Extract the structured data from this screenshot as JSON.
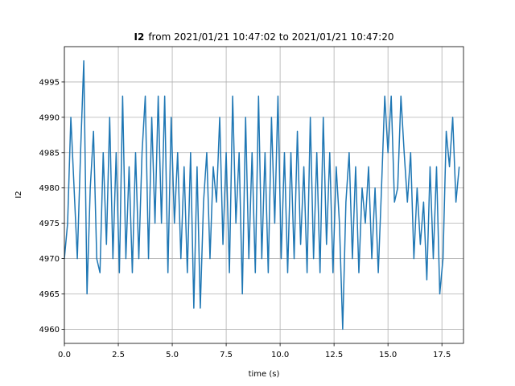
{
  "chart_data": {
    "type": "line",
    "title_bold": "I2",
    "title": "from 2021/01/21 10:47:02 to 2021/01/21 10:47:20",
    "x_label": "time (s)",
    "y_label": "I2",
    "color": "#1f77b4",
    "grid": true,
    "xlim": [
      0,
      18.5
    ],
    "ylim": [
      4958,
      5000
    ],
    "xticks": [
      {
        "value": 0,
        "label": "0.0"
      },
      2.5,
      {
        "value": 5,
        "label": "5.0"
      },
      7.5,
      {
        "value": 10,
        "label": "10.0"
      },
      12.5,
      {
        "value": 15,
        "label": "15.0"
      },
      17.5
    ],
    "yticks": [
      4960,
      4965,
      4970,
      4975,
      4980,
      4985,
      4990,
      4995
    ],
    "x": [
      0,
      0.15,
      0.3,
      0.45,
      0.6,
      0.75,
      0.9,
      1.05,
      1.2,
      1.35,
      1.5,
      1.65,
      1.8,
      1.95,
      2.1,
      2.25,
      2.4,
      2.55,
      2.7,
      2.85,
      3.0,
      3.15,
      3.3,
      3.45,
      3.6,
      3.75,
      3.9,
      4.05,
      4.2,
      4.35,
      4.5,
      4.65,
      4.8,
      4.95,
      5.1,
      5.25,
      5.4,
      5.55,
      5.7,
      5.85,
      6.0,
      6.15,
      6.3,
      6.45,
      6.6,
      6.75,
      6.9,
      7.05,
      7.2,
      7.35,
      7.5,
      7.65,
      7.8,
      7.95,
      8.1,
      8.25,
      8.4,
      8.55,
      8.7,
      8.85,
      9.0,
      9.15,
      9.3,
      9.45,
      9.6,
      9.75,
      9.9,
      10.05,
      10.2,
      10.35,
      10.5,
      10.65,
      10.8,
      10.95,
      11.1,
      11.25,
      11.4,
      11.55,
      11.7,
      11.85,
      12.0,
      12.15,
      12.3,
      12.45,
      12.6,
      12.75,
      12.9,
      13.05,
      13.2,
      13.35,
      13.5,
      13.65,
      13.8,
      13.95,
      14.1,
      14.25,
      14.4,
      14.55,
      14.7,
      14.85,
      15.0,
      15.15,
      15.3,
      15.45,
      15.6,
      15.75,
      15.9,
      16.05,
      16.2,
      16.35,
      16.5,
      16.65,
      16.8,
      16.95,
      17.1,
      17.25,
      17.4,
      17.55,
      17.7,
      17.85,
      18.0,
      18.15,
      18.3
    ],
    "values": [
      4970,
      4975,
      4990,
      4980,
      4970,
      4985,
      4998,
      4965,
      4980,
      4988,
      4970,
      4968,
      4985,
      4972,
      4990,
      4970,
      4985,
      4968,
      4993,
      4970,
      4983,
      4968,
      4985,
      4970,
      4985,
      4993,
      4970,
      4990,
      4975,
      4993,
      4975,
      4993,
      4968,
      4990,
      4975,
      4985,
      4970,
      4983,
      4968,
      4985,
      4963,
      4983,
      4963,
      4978,
      4985,
      4970,
      4983,
      4978,
      4990,
      4972,
      4985,
      4968,
      4993,
      4975,
      4985,
      4965,
      4990,
      4970,
      4985,
      4968,
      4993,
      4970,
      4985,
      4968,
      4990,
      4975,
      4993,
      4970,
      4985,
      4968,
      4985,
      4970,
      4988,
      4972,
      4983,
      4968,
      4990,
      4970,
      4985,
      4968,
      4990,
      4972,
      4985,
      4968,
      4983,
      4975,
      4960,
      4978,
      4985,
      4970,
      4983,
      4968,
      4980,
      4975,
      4983,
      4970,
      4980,
      4968,
      4980,
      4993,
      4985,
      4993,
      4978,
      4980,
      4993,
      4985,
      4978,
      4985,
      4970,
      4980,
      4972,
      4978,
      4967,
      4983,
      4970,
      4983,
      4965,
      4970,
      4988,
      4983,
      4990,
      4978,
      4983
    ]
  }
}
